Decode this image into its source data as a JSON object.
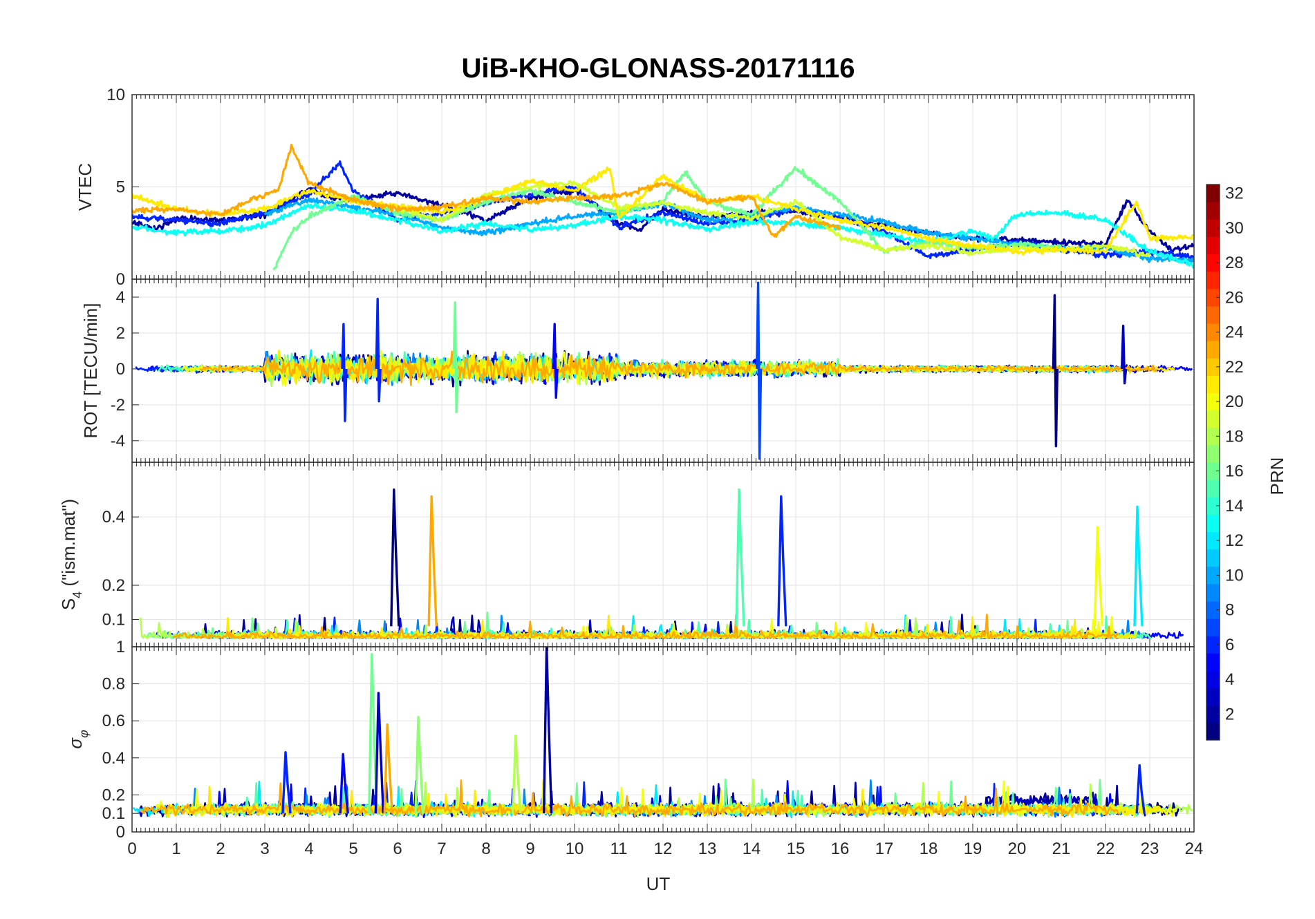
{
  "chart_data": {
    "type": "line",
    "title": "UiB-KHO-GLONASS-20171116",
    "xlabel": "UT",
    "xlim": [
      0,
      24
    ],
    "x_ticks": [
      "0",
      "1",
      "2",
      "3",
      "4",
      "5",
      "6",
      "7",
      "8",
      "9",
      "10",
      "11",
      "12",
      "13",
      "14",
      "15",
      "16",
      "17",
      "18",
      "19",
      "20",
      "21",
      "22",
      "23",
      "24"
    ],
    "grid": true,
    "colorbar": {
      "label": "PRN",
      "range": [
        1,
        32
      ],
      "colormap": "jet",
      "ticks": [
        "2",
        "4",
        "6",
        "8",
        "10",
        "12",
        "14",
        "16",
        "18",
        "20",
        "22",
        "24",
        "26",
        "28",
        "30",
        "32"
      ]
    },
    "panels": [
      {
        "id": "vtec",
        "ylabel": "VTEC",
        "ylim": [
          0,
          10
        ],
        "y_ticks": [
          {
            "value": 0,
            "label": "0"
          },
          {
            "value": 5,
            "label": "5"
          },
          {
            "value": 10,
            "label": "10"
          }
        ],
        "series": [
          {
            "prn": 2,
            "x": [
              0,
              0.5,
              1,
              2,
              3,
              3.5,
              4,
              4.5,
              5,
              6,
              7,
              8,
              9,
              10,
              10.5,
              11,
              11.5,
              12,
              13,
              14,
              15,
              16,
              17,
              18,
              19,
              20,
              21,
              22,
              22.5,
              23,
              23.5,
              24
            ],
            "y": [
              3.1,
              2.7,
              3.3,
              3.2,
              3.5,
              4.2,
              4.9,
              4.4,
              4.3,
              4.7,
              4.0,
              3.2,
              4.4,
              4.8,
              4.0,
              3.0,
              2.7,
              3.8,
              3.3,
              3.6,
              3.7,
              3.3,
              2.9,
              2.5,
              2.2,
              2.1,
              2.0,
              1.9,
              4.3,
              2.6,
              1.6,
              1.8
            ]
          },
          {
            "prn": 6,
            "x": [
              0,
              1,
              2,
              3,
              4,
              4.7,
              5,
              6,
              7,
              8,
              9,
              10,
              11,
              12,
              13,
              14,
              15,
              16,
              17,
              18,
              19,
              20,
              21,
              22,
              23,
              24
            ],
            "y": [
              3.4,
              3.2,
              3.0,
              3.6,
              4.6,
              6.3,
              4.8,
              3.2,
              3.6,
              4.1,
              4.6,
              5.0,
              2.8,
              3.6,
              3.0,
              3.2,
              3.8,
              3.4,
              2.6,
              1.2,
              1.6,
              2.0,
              1.6,
              1.3,
              1.5,
              1.2
            ]
          },
          {
            "prn": 10,
            "x": [
              3,
              4,
              5,
              6,
              7,
              8,
              9,
              10,
              11,
              12,
              13,
              14,
              15,
              16,
              17,
              18,
              19,
              20,
              21,
              22,
              23,
              24
            ],
            "y": [
              3.5,
              4.3,
              3.9,
              3.5,
              2.8,
              2.5,
              3.0,
              3.4,
              3.6,
              4.1,
              3.2,
              3.4,
              3.9,
              3.5,
              3.1,
              2.5,
              2.2,
              1.9,
              1.6,
              1.7,
              1.1,
              1.0
            ]
          },
          {
            "prn": 13,
            "x": [
              0,
              1,
              2,
              3,
              4,
              5,
              6,
              7,
              8,
              9,
              10,
              11,
              12,
              13,
              14,
              15,
              16,
              17,
              18,
              19,
              19.5,
              20,
              21,
              22,
              23,
              24
            ],
            "y": [
              2.8,
              2.5,
              2.6,
              2.9,
              4.0,
              3.7,
              3.2,
              2.6,
              3.0,
              2.7,
              2.9,
              3.4,
              3.2,
              2.7,
              3.1,
              3.0,
              2.8,
              2.4,
              2.0,
              2.6,
              2.2,
              3.5,
              3.6,
              3.2,
              1.5,
              0.8
            ]
          },
          {
            "prn": 16,
            "x": [
              3.2,
              3.6,
              4,
              5,
              6,
              7,
              8,
              9,
              10,
              11,
              12,
              12.5,
              13,
              14,
              15,
              16,
              17,
              18,
              19,
              20,
              21
            ],
            "y": [
              0.5,
              2.5,
              3.4,
              4.5,
              3.6,
              3.2,
              4.2,
              4.8,
              4.2,
              3.6,
              4.2,
              5.8,
              4.2,
              3.5,
              6.0,
              4.2,
              1.5,
              2.0,
              1.7,
              1.9,
              1.7
            ]
          },
          {
            "prn": 19,
            "x": [
              6,
              7,
              8,
              9,
              10,
              11,
              12,
              13,
              14,
              15,
              16,
              17,
              18,
              19,
              20,
              21,
              22,
              23
            ],
            "y": [
              3.8,
              3.2,
              4.6,
              5.0,
              5.2,
              3.9,
              4.1,
              3.6,
              3.3,
              4.2,
              2.3,
              1.6,
              1.8,
              1.4,
              1.7,
              1.6,
              1.8,
              1.3
            ]
          },
          {
            "prn": 21,
            "x": [
              0,
              1,
              2,
              3,
              4,
              5,
              6,
              7,
              8,
              9,
              10,
              10.8,
              11,
              12,
              13,
              14,
              15,
              16,
              17,
              18,
              19,
              20,
              21,
              22,
              22.7,
              23,
              24
            ],
            "y": [
              4.5,
              3.8,
              3.5,
              3.8,
              4.8,
              4.2,
              4.0,
              3.6,
              4.4,
              5.3,
              4.8,
              6.0,
              3.3,
              5.6,
              4.2,
              4.5,
              3.8,
              3.2,
              2.8,
              2.2,
              1.8,
              1.5,
              1.6,
              1.5,
              4.2,
              2.2,
              2.3
            ]
          },
          {
            "prn": 23,
            "x": [
              0,
              1,
              2,
              2.8,
              3.3,
              3.6,
              4,
              5,
              6,
              7,
              8,
              9,
              10,
              11,
              12,
              13,
              14,
              14.5,
              15,
              16
            ],
            "y": [
              3.7,
              3.8,
              3.5,
              4.4,
              4.8,
              7.2,
              5.2,
              4.3,
              3.8,
              3.9,
              4.4,
              4.2,
              4.4,
              4.5,
              5.2,
              4.2,
              4.5,
              2.3,
              3.4,
              2.8
            ]
          }
        ]
      },
      {
        "id": "rot",
        "ylabel": "ROT [TECU/min]",
        "ylim": [
          -5.2,
          5.0
        ],
        "y_ticks": [
          {
            "value": -4,
            "label": "-4"
          },
          {
            "value": -2,
            "label": "-2"
          },
          {
            "value": 0,
            "label": "0"
          },
          {
            "value": 2,
            "label": "2"
          },
          {
            "value": 4,
            "label": "4"
          }
        ],
        "spikes": [
          {
            "prn": 6,
            "x": 4.78,
            "ymin": -2.9,
            "ymax": 2.5
          },
          {
            "prn": 6,
            "x": 5.55,
            "ymin": -1.8,
            "ymax": 3.9
          },
          {
            "prn": 16,
            "x": 7.3,
            "ymin": -2.4,
            "ymax": 3.7
          },
          {
            "prn": 5,
            "x": 9.55,
            "ymin": -1.6,
            "ymax": 2.5
          },
          {
            "prn": 7,
            "x": 14.15,
            "ymin": -5.0,
            "ymax": 4.8
          },
          {
            "prn": 1,
            "x": 20.85,
            "ymin": -4.3,
            "ymax": 4.1
          },
          {
            "prn": 3,
            "x": 22.4,
            "ymin": -0.8,
            "ymax": 2.4
          }
        ]
      },
      {
        "id": "s4",
        "ylabel": "S4 (\"ism.mat\")",
        "ylim": [
          0.02,
          0.56
        ],
        "y_ticks": [
          {
            "value": 0.1,
            "label": "0.1"
          },
          {
            "value": 0.2,
            "label": "0.2"
          },
          {
            "value": 0.4,
            "label": "0.4"
          }
        ],
        "spikes": [
          {
            "prn": 1,
            "x": 5.95,
            "ymin": 0.08,
            "ymax": 0.48
          },
          {
            "prn": 23,
            "x": 6.8,
            "ymin": 0.08,
            "ymax": 0.46
          },
          {
            "prn": 15,
            "x": 13.75,
            "ymin": 0.08,
            "ymax": 0.48
          },
          {
            "prn": 6,
            "x": 14.7,
            "ymin": 0.08,
            "ymax": 0.46
          },
          {
            "prn": 20,
            "x": 21.85,
            "ymin": 0.08,
            "ymax": 0.37
          },
          {
            "prn": 12,
            "x": 22.75,
            "ymin": 0.08,
            "ymax": 0.43
          }
        ]
      },
      {
        "id": "sigma_phi",
        "ylabel": "σφ",
        "ylim": [
          0,
          1
        ],
        "y_ticks": [
          {
            "value": 0,
            "label": "0"
          },
          {
            "value": 0.1,
            "label": "0.1"
          },
          {
            "value": 0.2,
            "label": "0.2"
          },
          {
            "value": 0.4,
            "label": "0.4"
          },
          {
            "value": 0.6,
            "label": "0.6"
          },
          {
            "value": 0.8,
            "label": "0.8"
          },
          {
            "value": 1,
            "label": "1"
          }
        ],
        "spikes": [
          {
            "prn": 6,
            "x": 3.5,
            "ymin": 0.1,
            "ymax": 0.43
          },
          {
            "prn": 5,
            "x": 4.8,
            "ymin": 0.1,
            "ymax": 0.42
          },
          {
            "prn": 16,
            "x": 5.45,
            "ymin": 0.1,
            "ymax": 0.96
          },
          {
            "prn": 3,
            "x": 5.6,
            "ymin": 0.1,
            "ymax": 0.75
          },
          {
            "prn": 23,
            "x": 5.8,
            "ymin": 0.1,
            "ymax": 0.58
          },
          {
            "prn": 17,
            "x": 6.5,
            "ymin": 0.1,
            "ymax": 0.62
          },
          {
            "prn": 18,
            "x": 8.7,
            "ymin": 0.1,
            "ymax": 0.52
          },
          {
            "prn": 2,
            "x": 9.4,
            "ymin": 0.1,
            "ymax": 1.0
          },
          {
            "prn": 6,
            "x": 22.8,
            "ymin": 0.1,
            "ymax": 0.36
          }
        ]
      }
    ]
  }
}
